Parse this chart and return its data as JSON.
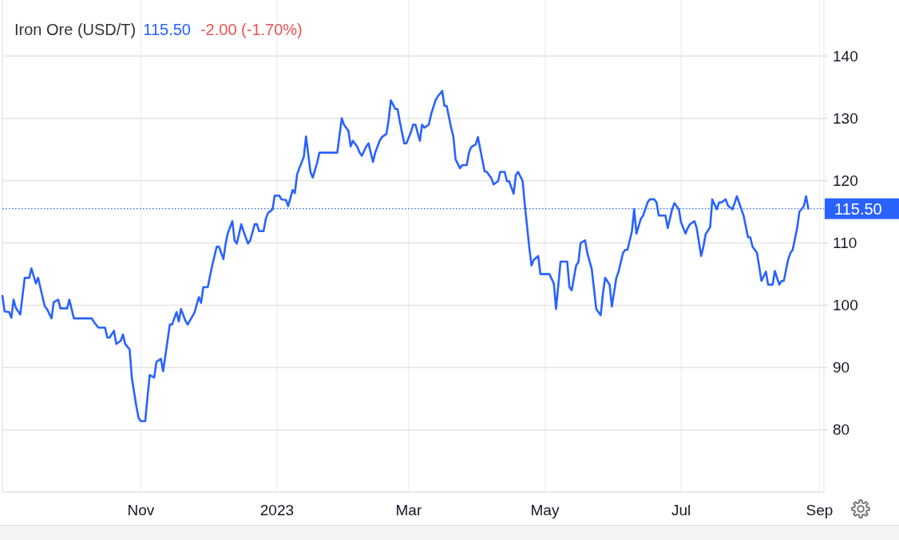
{
  "chart_data": {
    "type": "line",
    "title": "Iron Ore (USD/T)",
    "annotations": [
      "115.50",
      "-2.00 (-1.70%)"
    ],
    "x": [
      "2022-08-31",
      "2022-09-01",
      "2022-09-03",
      "2022-09-04",
      "2022-09-05",
      "2022-09-06",
      "2022-09-08",
      "2022-09-10",
      "2022-09-12",
      "2022-09-13",
      "2022-09-15",
      "2022-09-16",
      "2022-09-18",
      "2022-09-19",
      "2022-09-20",
      "2022-09-22",
      "2022-09-23",
      "2022-09-25",
      "2022-09-26",
      "2022-09-29",
      "2022-09-30",
      "2022-10-02",
      "2022-10-10",
      "2022-10-11",
      "2022-10-13",
      "2022-10-16",
      "2022-10-17",
      "2022-10-18",
      "2022-10-20",
      "2022-10-21",
      "2022-10-23",
      "2022-10-24",
      "2022-10-25",
      "2022-10-27",
      "2022-10-28",
      "2022-10-30",
      "2022-10-31",
      "2022-11-01",
      "2022-11-03",
      "2022-11-04",
      "2022-11-05",
      "2022-11-07",
      "2022-11-08",
      "2022-11-10",
      "2022-11-11",
      "2022-11-14",
      "2022-11-15",
      "2022-11-17",
      "2022-11-18",
      "2022-11-19",
      "2022-11-21",
      "2022-11-22",
      "2022-11-25",
      "2022-11-27",
      "2022-11-28",
      "2022-11-29",
      "2022-12-01",
      "2022-12-02",
      "2022-12-03",
      "2022-12-05",
      "2022-12-06",
      "2022-12-08",
      "2022-12-09",
      "2022-12-10",
      "2022-12-12",
      "2022-12-13",
      "2022-12-14",
      "2022-12-16",
      "2022-12-17",
      "2022-12-19",
      "2022-12-20",
      "2022-12-22",
      "2022-12-23",
      "2022-12-24",
      "2022-12-26",
      "2022-12-27",
      "2022-12-28",
      "2022-12-30",
      "2022-12-31",
      "2023-01-02",
      "2023-01-03",
      "2023-01-05",
      "2023-01-06",
      "2023-01-08",
      "2023-01-09",
      "2023-01-10",
      "2023-01-11",
      "2023-01-13",
      "2023-01-14",
      "2023-01-16",
      "2023-01-17",
      "2023-01-19",
      "2023-01-20",
      "2023-01-28",
      "2023-01-30",
      "2023-01-31",
      "2023-02-02",
      "2023-02-03",
      "2023-02-04",
      "2023-02-06",
      "2023-02-07",
      "2023-02-08",
      "2023-02-10",
      "2023-02-11",
      "2023-02-13",
      "2023-02-14",
      "2023-02-16",
      "2023-02-17",
      "2023-02-19",
      "2023-02-20",
      "2023-02-21",
      "2023-02-23",
      "2023-02-24",
      "2023-02-25",
      "2023-02-27",
      "2023-02-28",
      "2023-03-02",
      "2023-03-03",
      "2023-03-04",
      "2023-03-06",
      "2023-03-07",
      "2023-03-08",
      "2023-03-10",
      "2023-03-11",
      "2023-03-13",
      "2023-03-14",
      "2023-03-16",
      "2023-03-17",
      "2023-03-18",
      "2023-03-20",
      "2023-03-21",
      "2023-03-22",
      "2023-03-24",
      "2023-03-25",
      "2023-03-27",
      "2023-03-28",
      "2023-03-29",
      "2023-03-31",
      "2023-04-01",
      "2023-04-03",
      "2023-04-04",
      "2023-04-05",
      "2023-04-07",
      "2023-04-08",
      "2023-04-10",
      "2023-04-11",
      "2023-04-13",
      "2023-04-14",
      "2023-04-15",
      "2023-04-17",
      "2023-04-18",
      "2023-04-19",
      "2023-04-21",
      "2023-04-22",
      "2023-04-24",
      "2023-04-25",
      "2023-04-26",
      "2023-04-28",
      "2023-04-29",
      "2023-05-03",
      "2023-05-05",
      "2023-05-06",
      "2023-05-08",
      "2023-05-11",
      "2023-05-12",
      "2023-05-13",
      "2023-05-15",
      "2023-05-16",
      "2023-05-17",
      "2023-05-19",
      "2023-05-20",
      "2023-05-22",
      "2023-05-23",
      "2023-05-24",
      "2023-05-26",
      "2023-05-27",
      "2023-05-28",
      "2023-05-30",
      "2023-05-31",
      "2023-06-02",
      "2023-06-03",
      "2023-06-05",
      "2023-06-06",
      "2023-06-07",
      "2023-06-09",
      "2023-06-10",
      "2023-06-11",
      "2023-06-13",
      "2023-06-14",
      "2023-06-16",
      "2023-06-17",
      "2023-06-19",
      "2023-06-20",
      "2023-06-21",
      "2023-06-24",
      "2023-06-25",
      "2023-06-27",
      "2023-06-28",
      "2023-06-30",
      "2023-07-01",
      "2023-07-03",
      "2023-07-04",
      "2023-07-05",
      "2023-07-07",
      "2023-07-08",
      "2023-07-10",
      "2023-07-11",
      "2023-07-12",
      "2023-07-14",
      "2023-07-15",
      "2023-07-17",
      "2023-07-18",
      "2023-07-19",
      "2023-07-21",
      "2023-07-22",
      "2023-07-24",
      "2023-07-25",
      "2023-07-26",
      "2023-07-28",
      "2023-07-29",
      "2023-07-31",
      "2023-08-01",
      "2023-08-02",
      "2023-08-04",
      "2023-08-05",
      "2023-08-06",
      "2023-08-08",
      "2023-08-09",
      "2023-08-11",
      "2023-08-12",
      "2023-08-14",
      "2023-08-15",
      "2023-08-16",
      "2023-08-18",
      "2023-08-19",
      "2023-08-20",
      "2023-08-22",
      "2023-08-23",
      "2023-08-25",
      "2023-08-26",
      "2023-08-27"
    ],
    "series": [
      {
        "color": "#2962ff",
        "values": [
          101.5,
          99.0,
          98.9,
          98.0,
          100.9,
          99.6,
          98.5,
          104.4,
          104.4,
          105.9,
          103.5,
          104.4,
          101.3,
          99.8,
          99.4,
          97.9,
          100.5,
          100.9,
          99.5,
          99.5,
          100.9,
          97.9,
          97.9,
          97.3,
          96.4,
          96.4,
          94.8,
          94.8,
          95.9,
          93.8,
          94.3,
          95.3,
          93.8,
          92.9,
          88.3,
          83.8,
          81.9,
          81.4,
          81.4,
          85.3,
          88.8,
          88.4,
          90.9,
          91.4,
          89.4,
          96.9,
          96.9,
          98.9,
          97.4,
          99.4,
          97.5,
          96.9,
          98.8,
          101.3,
          100.4,
          102.9,
          102.9,
          104.7,
          106.4,
          109.4,
          109.4,
          107.4,
          109.9,
          111.6,
          113.5,
          110.4,
          109.9,
          113.0,
          111.9,
          109.9,
          110.4,
          113.0,
          113.0,
          111.9,
          111.9,
          113.9,
          114.8,
          115.4,
          117.6,
          117.6,
          117.0,
          116.9,
          115.9,
          118.5,
          118.0,
          121.0,
          122.0,
          123.8,
          127.1,
          121.4,
          120.5,
          122.9,
          124.5,
          124.5,
          130.0,
          129.0,
          128.0,
          125.5,
          126.4,
          125.4,
          124.5,
          124.0,
          125.5,
          126.0,
          123.0,
          124.5,
          126.4,
          127.0,
          127.5,
          129.7,
          132.9,
          131.5,
          131.5,
          129.5,
          126.0,
          126.0,
          127.8,
          129.0,
          129.0,
          126.4,
          129.0,
          128.5,
          129.0,
          130.6,
          132.9,
          133.5,
          134.4,
          132.0,
          132.0,
          128.5,
          127.1,
          123.4,
          122.0,
          122.5,
          122.5,
          124.5,
          125.4,
          125.8,
          127.0,
          123.3,
          121.5,
          121.4,
          120.4,
          119.4,
          119.9,
          121.4,
          121.4,
          119.9,
          119.9,
          117.9,
          120.9,
          121.4,
          120.0,
          116.2,
          109.3,
          106.4,
          107.3,
          107.9,
          105.0,
          105.0,
          103.5,
          99.4,
          107.0,
          107.0,
          102.9,
          102.4,
          106.4,
          106.9,
          110.0,
          110.4,
          108.4,
          105.8,
          102.6,
          99.4,
          98.4,
          101.9,
          104.4,
          103.3,
          99.8,
          104.4,
          105.4,
          108.4,
          108.9,
          108.9,
          111.9,
          115.4,
          111.5,
          113.9,
          114.4,
          116.5,
          117.0,
          117.0,
          116.5,
          114.4,
          114.4,
          112.4,
          115.4,
          116.4,
          115.4,
          113.3,
          111.5,
          112.4,
          113.0,
          113.5,
          112.4,
          107.9,
          109.4,
          111.4,
          112.5,
          117.0,
          115.4,
          116.5,
          116.5,
          117.0,
          116.0,
          115.4,
          116.4,
          117.5,
          115.4,
          114.4,
          110.9,
          110.9,
          109.4,
          108.4,
          106.2,
          103.9,
          105.4,
          103.3,
          103.3,
          105.5,
          103.3,
          103.9,
          103.9,
          107.4,
          108.4,
          108.9,
          112.4,
          115.0,
          115.9,
          117.5,
          115.5
        ]
      }
    ],
    "xlim": [
      "2022-08-31",
      "2023-09-03"
    ],
    "xticks": [
      {
        "value": "2022-11-01",
        "label": "Nov"
      },
      {
        "value": "2023-01-01",
        "label": "2023"
      },
      {
        "value": "2023-03-01",
        "label": "Mar"
      },
      {
        "value": "2023-05-01",
        "label": "May"
      },
      {
        "value": "2023-07-01",
        "label": "Jul"
      },
      {
        "value": "2023-09-01",
        "label": "Sep"
      }
    ],
    "ylim": [
      70,
      149
    ],
    "yticks": [
      80,
      90,
      100,
      110,
      120,
      130,
      140
    ],
    "grid": true,
    "line_style": "solid",
    "ref_lines": [
      {
        "axis": "y",
        "value": 115.5,
        "label": "115.50",
        "color": "#2962ff",
        "line_style": "dotted"
      }
    ]
  }
}
